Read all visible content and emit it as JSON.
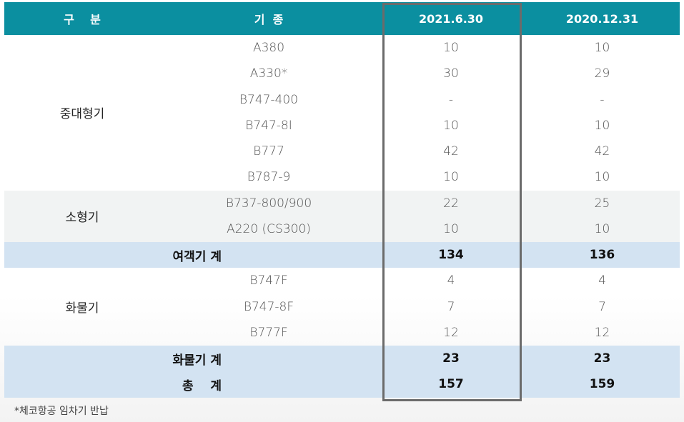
{
  "header": {
    "category": "구    분",
    "aircraft_type": "기  종",
    "date1": "2021.6.30",
    "date2": "2020.12.31"
  },
  "groups": {
    "widebody": "중대형기",
    "narrowbody": "소형기",
    "cargo": "화물기"
  },
  "rows": [
    {
      "type": "A380",
      "d1": "10",
      "d2": "10"
    },
    {
      "type": "A330*",
      "d1": "30",
      "d2": "29"
    },
    {
      "type": "B747-400",
      "d1": "-",
      "d2": "-"
    },
    {
      "type": "B747-8I",
      "d1": "10",
      "d2": "10"
    },
    {
      "type": "B777",
      "d1": "42",
      "d2": "42"
    },
    {
      "type": "B787-9",
      "d1": "10",
      "d2": "10"
    },
    {
      "type": "B737-800/900",
      "d1": "22",
      "d2": "25"
    },
    {
      "type": "A220 (CS300)",
      "d1": "10",
      "d2": "10"
    },
    {
      "type": "B747F",
      "d1": "4",
      "d2": "4"
    },
    {
      "type": "B747-8F",
      "d1": "7",
      "d2": "7"
    },
    {
      "type": "B777F",
      "d1": "12",
      "d2": "12"
    }
  ],
  "passenger_subtotal": {
    "label": "여객기 계",
    "d1": "134",
    "d2": "136"
  },
  "cargo_subtotal": {
    "label": "화물기 계",
    "d1": "23",
    "d2": "23"
  },
  "grand_total": {
    "label": "총    계",
    "d1": "157",
    "d2": "159"
  },
  "footnote": "*체코항공 임차기 반납",
  "colors": {
    "header_bg": "#0b8fa0",
    "subtotal_bg": "#d3e3f2",
    "highlight_border": "#6b6b6b"
  }
}
